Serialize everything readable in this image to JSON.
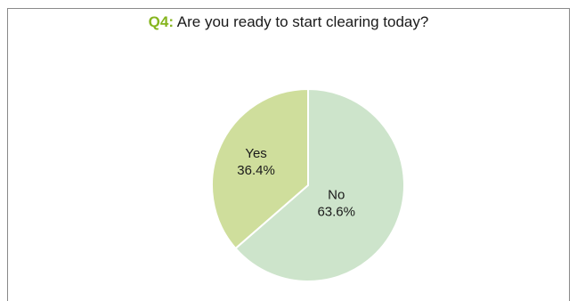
{
  "chart_data": {
    "type": "pie",
    "title_prefix": "Q4:",
    "title": "Are you ready to start clearing today?",
    "start_angle_deg": 0,
    "direction": "clockwise",
    "slices": [
      {
        "label": "No",
        "value": 63.6,
        "value_text": "63.6%",
        "color": "#cde4cb"
      },
      {
        "label": "Yes",
        "value": 36.4,
        "value_text": "36.4%",
        "color": "#cfde9c"
      }
    ],
    "slice_border_color": "#ffffff",
    "legend": "none"
  }
}
